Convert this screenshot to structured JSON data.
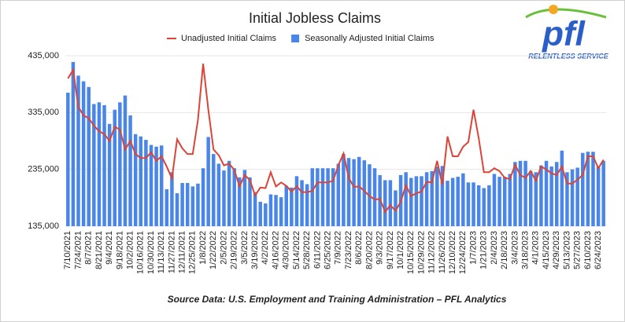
{
  "chart_data": {
    "type": "bar-line",
    "title": "Initial Jobless Claims",
    "source": "Source Data: U.S. Employment and Training Administration – PFL Analytics",
    "legend": "top",
    "grid": true,
    "ylim": [
      135000,
      435000
    ],
    "yticks": [
      {
        "value": 135000,
        "label": "135,000"
      },
      {
        "value": 235000,
        "label": "235,000"
      },
      {
        "value": 335000,
        "label": "335,000"
      },
      {
        "value": 435000,
        "label": "435,000"
      }
    ],
    "categories": [
      "7/10/2021",
      null,
      "7/24/2021",
      null,
      "8/7/2021",
      null,
      "8/21/2021",
      null,
      "9/4/2021",
      null,
      "9/18/2021",
      null,
      "10/2/2021",
      null,
      "10/16/2021",
      null,
      "10/30/2021",
      null,
      "11/13/2021",
      null,
      "11/27/2021",
      null,
      "12/11/2021",
      null,
      "12/25/2021",
      null,
      "1/8/2022",
      null,
      "1/22/2022",
      null,
      "2/5/2022",
      null,
      "2/19/2022",
      null,
      "3/5/2022",
      null,
      "3/19/2022",
      null,
      "4/2/2022",
      null,
      "4/16/2022",
      null,
      "4/30/2022",
      null,
      "5/14/2022",
      null,
      "5/28/2022",
      null,
      "6/11/2022",
      null,
      "6/25/2022",
      null,
      "7/9/2022",
      null,
      "7/23/2022",
      null,
      "8/6/2022",
      null,
      "8/20/2022",
      null,
      "9/3/2022",
      null,
      "9/17/2022",
      null,
      "10/1/2022",
      null,
      "10/15/2022",
      null,
      "10/29/2022",
      null,
      "11/12/2022",
      null,
      "11/26/2022",
      null,
      "12/10/2022",
      null,
      "12/24/2022",
      null,
      "1/7/2023",
      null,
      "1/21/2023",
      null,
      "2/4/2023",
      null,
      "2/18/2023",
      null,
      "3/4/2023",
      null,
      "3/18/2023",
      null,
      "4/1/2023",
      null,
      "4/15/2023",
      null,
      "4/29/2023",
      null,
      "5/13/2023",
      null,
      "5/27/2023",
      null,
      "6/10/2023",
      null,
      "6/24/2023",
      null
    ],
    "series": [
      {
        "name": "Seasonally Adjusted Initial Claims",
        "kind": "bar",
        "color": "#4a86e8",
        "values": [
          370000,
          424000,
          400000,
          390000,
          380000,
          350000,
          353000,
          348000,
          315000,
          340000,
          353000,
          365000,
          330000,
          297000,
          293000,
          287000,
          278000,
          275000,
          277000,
          200000,
          230000,
          193000,
          211000,
          211000,
          205000,
          210000,
          237000,
          292000,
          262000,
          245000,
          233000,
          250000,
          237000,
          221000,
          234000,
          221000,
          195000,
          178000,
          175000,
          191000,
          190000,
          186000,
          206000,
          203000,
          223000,
          216000,
          209000,
          237000,
          237000,
          237000,
          237000,
          237000,
          245000,
          262000,
          255000,
          253000,
          257000,
          251000,
          244000,
          237000,
          225000,
          216000,
          216000,
          198000,
          225000,
          230000,
          220000,
          223000,
          223000,
          230000,
          232000,
          240000,
          241000,
          215000,
          220000,
          222000,
          228000,
          212000,
          212000,
          207000,
          202000,
          207000,
          227000,
          222000,
          222000,
          227000,
          248000,
          250000,
          250000,
          232000,
          230000,
          242000,
          250000,
          240000,
          248000,
          268000,
          230000,
          235000,
          238000,
          264000,
          266000,
          266000,
          240000,
          250000
        ]
      },
      {
        "name": "Unadjusted Initial Claims",
        "kind": "line",
        "color": "#db4437",
        "values": [
          395000,
          410000,
          345000,
          330000,
          325000,
          312000,
          302000,
          297000,
          285000,
          310000,
          305000,
          270000,
          285000,
          262000,
          255000,
          255000,
          265000,
          250000,
          258000,
          240000,
          219000,
          288000,
          272000,
          262000,
          262000,
          322000,
          421000,
          340000,
          270000,
          260000,
          242000,
          245000,
          234000,
          205000,
          225000,
          216000,
          189000,
          203000,
          202000,
          230000,
          205000,
          212000,
          206000,
          196000,
          205000,
          195000,
          195000,
          197000,
          212000,
          212000,
          212000,
          215000,
          242000,
          263000,
          220000,
          204000,
          205000,
          197000,
          188000,
          182000,
          183000,
          160000,
          172000,
          162000,
          178000,
          207000,
          188000,
          193000,
          196000,
          213000,
          212000,
          250000,
          208000,
          293000,
          258000,
          258000,
          275000,
          283000,
          340000,
          290000,
          230000,
          230000,
          237000,
          232000,
          220000,
          218000,
          243000,
          225000,
          220000,
          232000,
          215000,
          240000,
          235000,
          228000,
          225000,
          240000,
          210000,
          210000,
          217000,
          225000,
          258000,
          258000,
          237000,
          252000
        ]
      }
    ]
  },
  "logo": {
    "mark": "pfl",
    "tagline": "RELENTLESS SERVICE"
  }
}
